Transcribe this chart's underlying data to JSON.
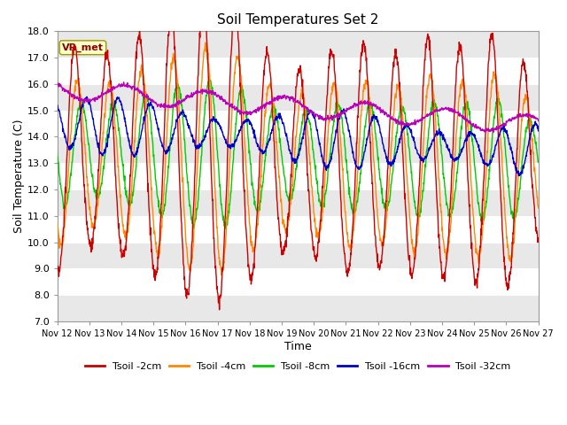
{
  "title": "Soil Temperatures Set 2",
  "xlabel": "Time",
  "ylabel": "Soil Temperature (C)",
  "ylim": [
    7.0,
    18.0
  ],
  "yticks": [
    7.0,
    8.0,
    9.0,
    10.0,
    11.0,
    12.0,
    13.0,
    14.0,
    15.0,
    16.0,
    17.0,
    18.0
  ],
  "xtick_labels": [
    "Nov 12",
    "Nov 13",
    "Nov 14",
    "Nov 15",
    "Nov 16",
    "Nov 17",
    "Nov 18",
    "Nov 19",
    "Nov 20",
    "Nov 21",
    "Nov 22",
    "Nov 23",
    "Nov 24",
    "Nov 25",
    "Nov 26",
    "Nov 27"
  ],
  "series_colors": [
    "#cc0000",
    "#ff8800",
    "#00cc00",
    "#0000cc",
    "#bb00bb"
  ],
  "series_labels": [
    "Tsoil -2cm",
    "Tsoil -4cm",
    "Tsoil -8cm",
    "Tsoil -16cm",
    "Tsoil -32cm"
  ],
  "bg_color": "#ffffff",
  "band_colors": [
    "#e8e8e8",
    "#ffffff"
  ],
  "vr_met_label": "VR_met",
  "n_points": 1440,
  "days": 15
}
